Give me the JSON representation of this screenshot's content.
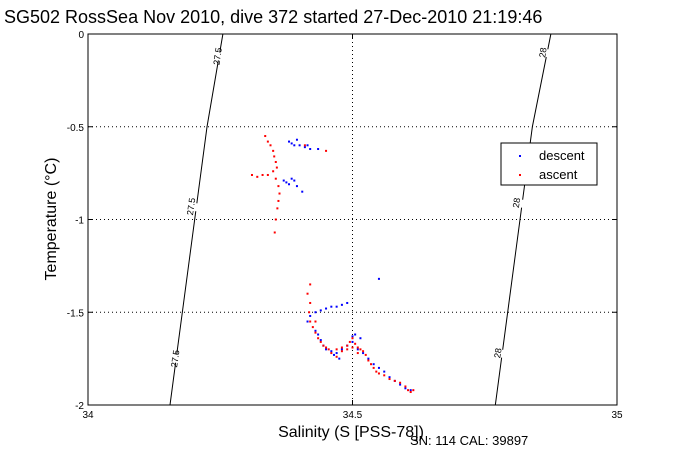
{
  "chart_data": {
    "type": "scatter",
    "title": "SG502 RossSea Nov 2010, dive 372 started 27-Dec-2010 21:19:46",
    "xlabel": "Salinity (S [PSS-78])",
    "ylabel": "Temperature (°C)",
    "xlim": [
      34,
      35
    ],
    "ylim": [
      -2,
      0
    ],
    "xticks": [
      "34",
      "34.5",
      "35"
    ],
    "yticks": [
      "0",
      "-0.5",
      "-1",
      "-1.5",
      "-2"
    ],
    "grid": true,
    "legend_position": "right",
    "caption": "SN: 114  CAL: 39897",
    "contours": [
      {
        "value": "27.5",
        "points": [
          [
            34.155,
            -2.0
          ],
          [
            34.225,
            -0.5
          ],
          [
            34.255,
            0.0
          ]
        ],
        "labels": [
          [
            34.165,
            -1.75
          ],
          [
            34.195,
            -0.93
          ],
          [
            34.245,
            -0.12
          ]
        ]
      },
      {
        "value": "28",
        "points": [
          [
            34.77,
            -2.0
          ],
          [
            34.84,
            -0.5
          ],
          [
            34.875,
            0.0
          ]
        ],
        "labels": [
          [
            34.775,
            -1.72
          ],
          [
            34.81,
            -0.91
          ],
          [
            34.86,
            -0.1
          ]
        ]
      }
    ],
    "series": [
      {
        "name": "descent",
        "color": "#0000ff",
        "points": [
          [
            34.38,
            -0.58
          ],
          [
            34.385,
            -0.59
          ],
          [
            34.39,
            -0.6
          ],
          [
            34.395,
            -0.57
          ],
          [
            34.4,
            -0.6
          ],
          [
            34.41,
            -0.61
          ],
          [
            34.415,
            -0.6
          ],
          [
            34.42,
            -0.62
          ],
          [
            34.435,
            -0.62
          ],
          [
            34.37,
            -0.79
          ],
          [
            34.375,
            -0.8
          ],
          [
            34.38,
            -0.81
          ],
          [
            34.39,
            -0.79
          ],
          [
            34.385,
            -0.78
          ],
          [
            34.405,
            -0.85
          ],
          [
            34.395,
            -0.82
          ],
          [
            34.55,
            -1.32
          ],
          [
            34.43,
            -1.5
          ],
          [
            34.44,
            -1.49
          ],
          [
            34.45,
            -1.48
          ],
          [
            34.46,
            -1.47
          ],
          [
            34.47,
            -1.47
          ],
          [
            34.48,
            -1.46
          ],
          [
            34.49,
            -1.45
          ],
          [
            34.42,
            -1.52
          ],
          [
            34.415,
            -1.55
          ],
          [
            34.43,
            -1.6
          ],
          [
            34.435,
            -1.62
          ],
          [
            34.44,
            -1.65
          ],
          [
            34.445,
            -1.68
          ],
          [
            34.45,
            -1.7
          ],
          [
            34.46,
            -1.71
          ],
          [
            34.47,
            -1.72
          ],
          [
            34.48,
            -1.7
          ],
          [
            34.49,
            -1.68
          ],
          [
            34.5,
            -1.66
          ],
          [
            34.51,
            -1.7
          ],
          [
            34.52,
            -1.72
          ],
          [
            34.53,
            -1.75
          ],
          [
            34.54,
            -1.78
          ],
          [
            34.55,
            -1.8
          ],
          [
            34.56,
            -1.82
          ],
          [
            34.57,
            -1.85
          ],
          [
            34.58,
            -1.87
          ],
          [
            34.59,
            -1.89
          ],
          [
            34.6,
            -1.91
          ],
          [
            34.61,
            -1.92
          ],
          [
            34.465,
            -1.73
          ],
          [
            34.475,
            -1.75
          ],
          [
            34.5,
            -1.63
          ],
          [
            34.505,
            -1.62
          ],
          [
            34.515,
            -1.64
          ]
        ]
      },
      {
        "name": "ascent",
        "color": "#ff0000",
        "points": [
          [
            34.335,
            -0.55
          ],
          [
            34.34,
            -0.58
          ],
          [
            34.345,
            -0.6
          ],
          [
            34.35,
            -0.63
          ],
          [
            34.352,
            -0.66
          ],
          [
            34.355,
            -0.69
          ],
          [
            34.357,
            -0.72
          ],
          [
            34.35,
            -0.74
          ],
          [
            34.34,
            -0.76
          ],
          [
            34.33,
            -0.76
          ],
          [
            34.32,
            -0.77
          ],
          [
            34.31,
            -0.76
          ],
          [
            34.355,
            -0.78
          ],
          [
            34.36,
            -0.82
          ],
          [
            34.362,
            -0.86
          ],
          [
            34.36,
            -0.9
          ],
          [
            34.358,
            -0.94
          ],
          [
            34.355,
            -1.0
          ],
          [
            34.353,
            -1.07
          ],
          [
            34.45,
            -0.63
          ],
          [
            34.41,
            -0.6
          ],
          [
            34.42,
            -1.35
          ],
          [
            34.415,
            -1.4
          ],
          [
            34.42,
            -1.45
          ],
          [
            34.418,
            -1.5
          ],
          [
            34.42,
            -1.55
          ],
          [
            34.425,
            -1.58
          ],
          [
            34.43,
            -1.61
          ],
          [
            34.435,
            -1.64
          ],
          [
            34.44,
            -1.66
          ],
          [
            34.445,
            -1.68
          ],
          [
            34.45,
            -1.69
          ],
          [
            34.455,
            -1.7
          ],
          [
            34.46,
            -1.72
          ],
          [
            34.47,
            -1.7
          ],
          [
            34.48,
            -1.69
          ],
          [
            34.49,
            -1.68
          ],
          [
            34.495,
            -1.66
          ],
          [
            34.5,
            -1.64
          ],
          [
            34.505,
            -1.67
          ],
          [
            34.51,
            -1.69
          ],
          [
            34.515,
            -1.7
          ],
          [
            34.52,
            -1.71
          ],
          [
            34.525,
            -1.73
          ],
          [
            34.53,
            -1.76
          ],
          [
            34.535,
            -1.78
          ],
          [
            34.54,
            -1.8
          ],
          [
            34.545,
            -1.82
          ],
          [
            34.55,
            -1.83
          ],
          [
            34.56,
            -1.84
          ],
          [
            34.57,
            -1.86
          ],
          [
            34.58,
            -1.87
          ],
          [
            34.59,
            -1.88
          ],
          [
            34.6,
            -1.9
          ],
          [
            34.605,
            -1.92
          ],
          [
            34.61,
            -1.93
          ],
          [
            34.615,
            -1.92
          ],
          [
            34.47,
            -1.74
          ],
          [
            34.48,
            -1.71
          ],
          [
            34.49,
            -1.7
          ],
          [
            34.5,
            -1.69
          ],
          [
            34.51,
            -1.72
          ],
          [
            34.43,
            -1.55
          ]
        ]
      }
    ]
  }
}
